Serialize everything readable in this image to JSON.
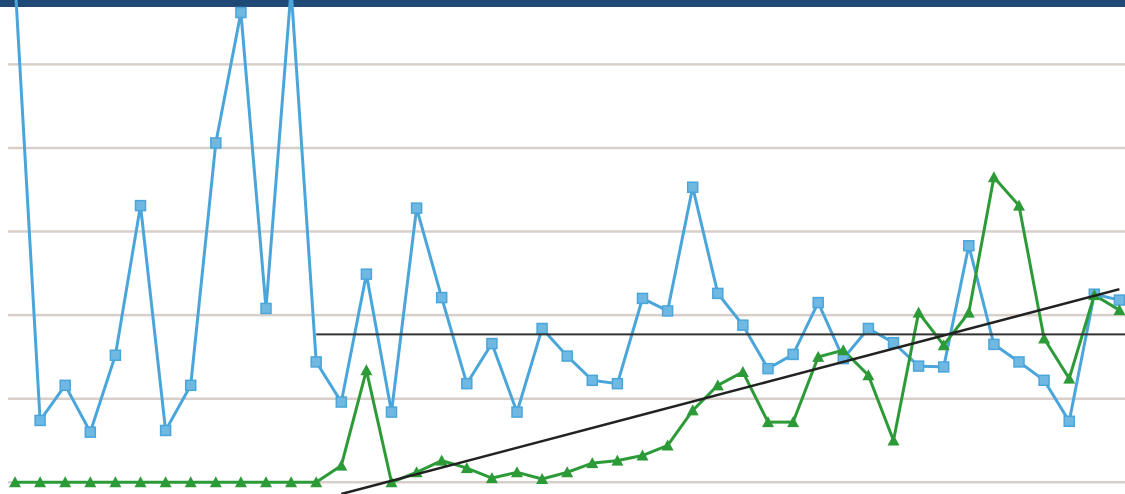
{
  "chart_data": {
    "type": "line",
    "categories": [
      null,
      null,
      null,
      null,
      null,
      null,
      null,
      null,
      null,
      null,
      null,
      null,
      null,
      null,
      null,
      null,
      null,
      null,
      null,
      null,
      null,
      null,
      null,
      null,
      null,
      null,
      null,
      null,
      null,
      null,
      null,
      null,
      null,
      null,
      null,
      null,
      null,
      null,
      null,
      null,
      null,
      null,
      null,
      null,
      null
    ],
    "series": [
      {
        "color": "#4aa6da",
        "marker": "square",
        "values": [
          6.0,
          0.74,
          1.16,
          0.6,
          1.52,
          3.31,
          0.62,
          1.16,
          4.06,
          5.62,
          2.08,
          5.9,
          1.44,
          0.96,
          2.49,
          0.84,
          3.28,
          2.21,
          1.18,
          1.66,
          0.84,
          1.84,
          1.51,
          1.22,
          1.18,
          2.2,
          2.05,
          3.53,
          2.26,
          1.88,
          1.36,
          1.53,
          2.15,
          1.48,
          1.84,
          1.67,
          1.39,
          1.38,
          2.83,
          1.65,
          1.44,
          1.22,
          0.73,
          2.25,
          2.18
        ]
      },
      {
        "color": "#2d9a38",
        "marker": "triangle",
        "values": [
          0,
          0,
          0,
          0,
          0,
          0,
          0,
          0,
          0,
          0,
          0,
          0,
          0,
          0.2,
          1.34,
          0,
          0.12,
          0.26,
          0.17,
          0.05,
          0.12,
          0.04,
          0.12,
          0.23,
          0.26,
          0.32,
          0.44,
          0.86,
          1.16,
          1.32,
          0.72,
          0.72,
          1.5,
          1.58,
          1.28,
          0.5,
          2.03,
          1.64,
          2.03,
          3.65,
          3.31,
          1.72,
          1.24,
          2.24,
          2.06
        ]
      }
    ],
    "mean_line": {
      "value": 1.77,
      "start": 12,
      "color": "#333333"
    },
    "trend": {
      "x": [
        13,
        44
      ],
      "values": [
        -0.14,
        2.31
      ],
      "color": "#222222"
    },
    "ylim": [
      -0.14,
      5.77
    ],
    "yticks": [
      0,
      1,
      2,
      3,
      4,
      5
    ],
    "grid": true
  }
}
